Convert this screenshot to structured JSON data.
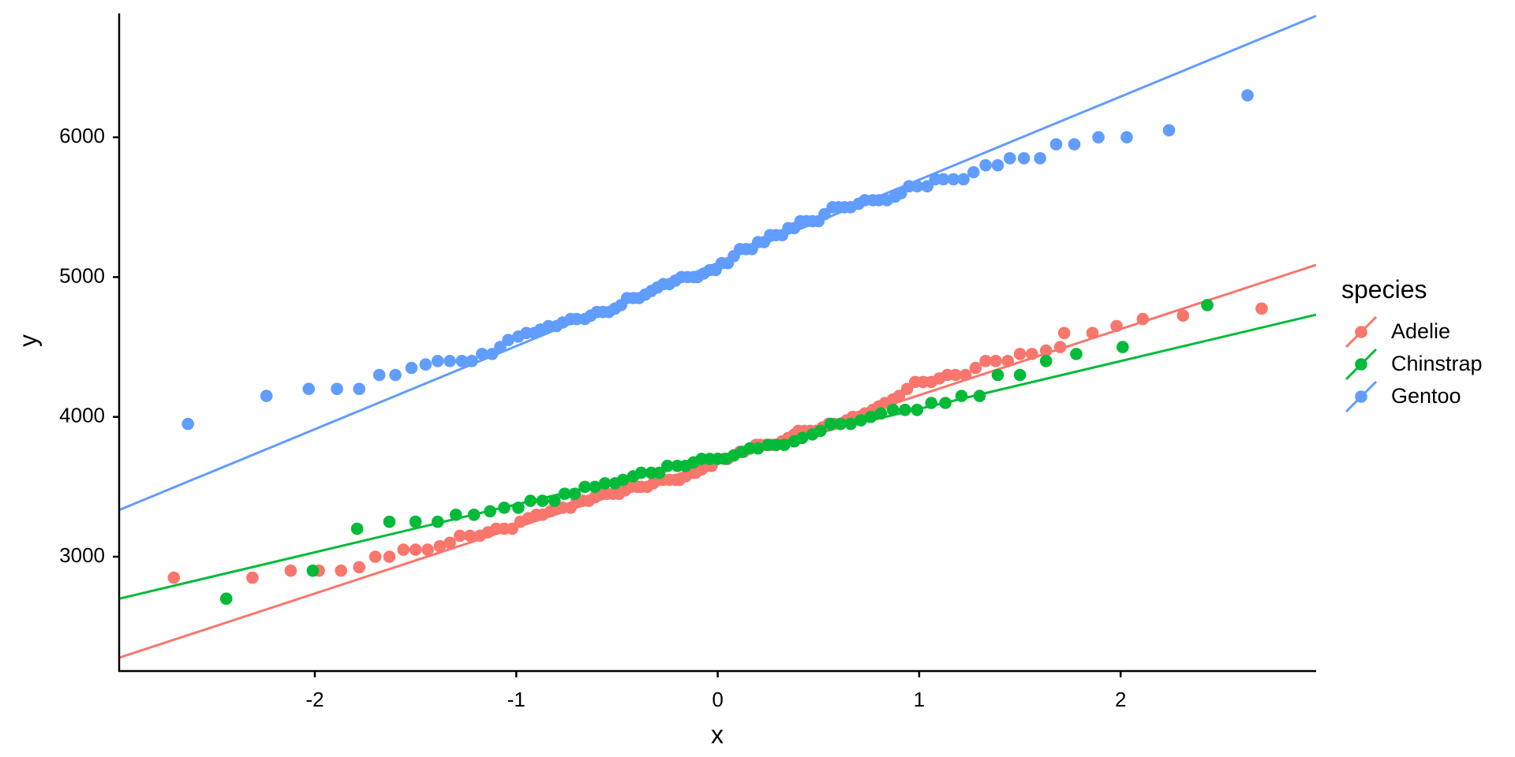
{
  "chart_data": {
    "type": "scatter",
    "subtype": "qq-plot with reference lines",
    "title": "",
    "xlabel": "x",
    "ylabel": "y",
    "xlim": [
      -2.97,
      2.97
    ],
    "ylim": [
      2200,
      6885
    ],
    "x_ticks": [
      -2,
      -1,
      0,
      1,
      2
    ],
    "x_tick_labels": [
      "-2",
      "-1",
      "0",
      "1",
      "2"
    ],
    "y_ticks": [
      3000,
      4000,
      5000,
      6000
    ],
    "y_tick_labels": [
      "3000",
      "4000",
      "5000",
      "6000"
    ],
    "grid": false,
    "legend": {
      "title": "species",
      "position": "right",
      "entries": [
        "Adelie",
        "Chinstrap",
        "Gentoo"
      ]
    },
    "series": [
      {
        "name": "Adelie",
        "color": "#F8766D",
        "n": 151,
        "reference_line": {
          "x": [
            -2.97,
            2.97
          ],
          "y": [
            2278,
            5087
          ]
        },
        "levels": [
          [
            -2.7,
            2850
          ],
          [
            -2.31,
            2850
          ],
          [
            -2.12,
            2900
          ],
          [
            -1.98,
            2900
          ],
          [
            -1.87,
            2900
          ],
          [
            -1.78,
            2925
          ],
          [
            -1.7,
            3000
          ],
          [
            -1.63,
            3000
          ],
          [
            -1.56,
            3050
          ],
          [
            -1.5,
            3050
          ],
          [
            -1.44,
            3050
          ],
          [
            -1.38,
            3075
          ],
          [
            -1.33,
            3100
          ],
          [
            -1.28,
            3150
          ],
          [
            -1.23,
            3150
          ],
          [
            -1.18,
            3150
          ],
          [
            -1.14,
            3175
          ],
          [
            -1.1,
            3200
          ],
          [
            -1.06,
            3200
          ],
          [
            -1.02,
            3200
          ],
          [
            -0.98,
            3250
          ],
          [
            -0.94,
            3275
          ],
          [
            -0.9,
            3300
          ],
          [
            -0.87,
            3300
          ],
          [
            -0.83,
            3325
          ],
          [
            -0.8,
            3350
          ],
          [
            -0.77,
            3350
          ],
          [
            -0.73,
            3350
          ],
          [
            -0.7,
            3400
          ],
          [
            -0.67,
            3400
          ],
          [
            -0.64,
            3400
          ],
          [
            -0.61,
            3425
          ],
          [
            -0.58,
            3450
          ],
          [
            -0.55,
            3450
          ],
          [
            -0.52,
            3450
          ],
          [
            -0.49,
            3450
          ],
          [
            -0.46,
            3475
          ],
          [
            -0.43,
            3500
          ],
          [
            -0.4,
            3500
          ],
          [
            -0.38,
            3500
          ],
          [
            -0.35,
            3500
          ],
          [
            -0.32,
            3525
          ],
          [
            -0.29,
            3550
          ],
          [
            -0.27,
            3550
          ],
          [
            -0.24,
            3550
          ],
          [
            -0.21,
            3550
          ],
          [
            -0.19,
            3550
          ],
          [
            -0.16,
            3575
          ],
          [
            -0.13,
            3600
          ],
          [
            -0.11,
            3600
          ],
          [
            -0.08,
            3625
          ],
          [
            -0.05,
            3650
          ],
          [
            -0.03,
            3650
          ],
          [
            0.0,
            3700
          ],
          [
            0.03,
            3700
          ],
          [
            0.05,
            3700
          ],
          [
            0.08,
            3725
          ],
          [
            0.11,
            3750
          ],
          [
            0.13,
            3750
          ],
          [
            0.16,
            3775
          ],
          [
            0.19,
            3800
          ],
          [
            0.21,
            3800
          ],
          [
            0.24,
            3800
          ],
          [
            0.27,
            3800
          ],
          [
            0.29,
            3800
          ],
          [
            0.32,
            3825
          ],
          [
            0.35,
            3850
          ],
          [
            0.38,
            3875
          ],
          [
            0.4,
            3900
          ],
          [
            0.43,
            3900
          ],
          [
            0.46,
            3900
          ],
          [
            0.49,
            3900
          ],
          [
            0.52,
            3925
          ],
          [
            0.55,
            3950
          ],
          [
            0.58,
            3950
          ],
          [
            0.61,
            3950
          ],
          [
            0.64,
            3975
          ],
          [
            0.67,
            4000
          ],
          [
            0.7,
            4000
          ],
          [
            0.73,
            4025
          ],
          [
            0.77,
            4050
          ],
          [
            0.8,
            4075
          ],
          [
            0.83,
            4100
          ],
          [
            0.87,
            4125
          ],
          [
            0.9,
            4150
          ],
          [
            0.94,
            4200
          ],
          [
            0.98,
            4250
          ],
          [
            1.02,
            4250
          ],
          [
            1.06,
            4250
          ],
          [
            1.1,
            4275
          ],
          [
            1.14,
            4300
          ],
          [
            1.18,
            4300
          ],
          [
            1.23,
            4300
          ],
          [
            1.28,
            4350
          ],
          [
            1.33,
            4400
          ],
          [
            1.38,
            4400
          ],
          [
            1.44,
            4400
          ],
          [
            1.5,
            4450
          ],
          [
            1.56,
            4450
          ],
          [
            1.63,
            4475
          ],
          [
            1.7,
            4500
          ],
          [
            1.72,
            4600
          ],
          [
            1.86,
            4600
          ],
          [
            1.98,
            4650
          ],
          [
            2.11,
            4700
          ],
          [
            2.31,
            4725
          ],
          [
            2.7,
            4775
          ]
        ]
      },
      {
        "name": "Chinstrap",
        "color": "#00BA38",
        "n": 68,
        "reference_line": {
          "x": [
            -2.97,
            2.97
          ],
          "y": [
            2700,
            4731
          ]
        },
        "levels": [
          [
            -2.44,
            2700
          ],
          [
            -2.01,
            2900
          ],
          [
            -1.79,
            3200
          ],
          [
            -1.63,
            3250
          ],
          [
            -1.5,
            3250
          ],
          [
            -1.39,
            3250
          ],
          [
            -1.3,
            3300
          ],
          [
            -1.21,
            3300
          ],
          [
            -1.13,
            3325
          ],
          [
            -1.06,
            3350
          ],
          [
            -0.99,
            3350
          ],
          [
            -0.93,
            3400
          ],
          [
            -0.87,
            3400
          ],
          [
            -0.81,
            3400
          ],
          [
            -0.76,
            3450
          ],
          [
            -0.71,
            3450
          ],
          [
            -0.66,
            3500
          ],
          [
            -0.61,
            3500
          ],
          [
            -0.56,
            3525
          ],
          [
            -0.51,
            3525
          ],
          [
            -0.47,
            3550
          ],
          [
            -0.42,
            3575
          ],
          [
            -0.38,
            3600
          ],
          [
            -0.33,
            3600
          ],
          [
            -0.29,
            3600
          ],
          [
            -0.25,
            3650
          ],
          [
            -0.2,
            3650
          ],
          [
            -0.16,
            3650
          ],
          [
            -0.12,
            3675
          ],
          [
            -0.08,
            3700
          ],
          [
            -0.04,
            3700
          ],
          [
            0.0,
            3700
          ],
          [
            0.04,
            3700
          ],
          [
            0.08,
            3725
          ],
          [
            0.12,
            3750
          ],
          [
            0.16,
            3775
          ],
          [
            0.2,
            3775
          ],
          [
            0.25,
            3800
          ],
          [
            0.29,
            3800
          ],
          [
            0.33,
            3800
          ],
          [
            0.38,
            3825
          ],
          [
            0.42,
            3850
          ],
          [
            0.47,
            3875
          ],
          [
            0.51,
            3900
          ],
          [
            0.56,
            3950
          ],
          [
            0.61,
            3950
          ],
          [
            0.66,
            3950
          ],
          [
            0.71,
            3975
          ],
          [
            0.76,
            4000
          ],
          [
            0.81,
            4025
          ],
          [
            0.87,
            4050
          ],
          [
            0.93,
            4050
          ],
          [
            0.99,
            4050
          ],
          [
            1.06,
            4100
          ],
          [
            1.13,
            4100
          ],
          [
            1.21,
            4150
          ],
          [
            1.3,
            4150
          ],
          [
            1.39,
            4300
          ],
          [
            1.5,
            4300
          ],
          [
            1.63,
            4400
          ],
          [
            1.78,
            4450
          ],
          [
            2.01,
            4500
          ],
          [
            2.43,
            4800
          ]
        ]
      },
      {
        "name": "Gentoo",
        "color": "#619CFF",
        "n": 123,
        "reference_line": {
          "x": [
            -2.97,
            2.97
          ],
          "y": [
            3335,
            6868
          ]
        },
        "levels": [
          [
            -2.63,
            3950
          ],
          [
            -2.24,
            4150
          ],
          [
            -2.03,
            4200
          ],
          [
            -1.89,
            4200
          ],
          [
            -1.78,
            4200
          ],
          [
            -1.68,
            4300
          ],
          [
            -1.6,
            4300
          ],
          [
            -1.52,
            4350
          ],
          [
            -1.45,
            4375
          ],
          [
            -1.39,
            4400
          ],
          [
            -1.33,
            4400
          ],
          [
            -1.27,
            4400
          ],
          [
            -1.22,
            4400
          ],
          [
            -1.17,
            4450
          ],
          [
            -1.12,
            4450
          ],
          [
            -1.08,
            4500
          ],
          [
            -1.04,
            4550
          ],
          [
            -0.99,
            4575
          ],
          [
            -0.95,
            4600
          ],
          [
            -0.91,
            4600
          ],
          [
            -0.88,
            4625
          ],
          [
            -0.84,
            4650
          ],
          [
            -0.8,
            4650
          ],
          [
            -0.77,
            4675
          ],
          [
            -0.73,
            4700
          ],
          [
            -0.7,
            4700
          ],
          [
            -0.66,
            4700
          ],
          [
            -0.63,
            4725
          ],
          [
            -0.6,
            4750
          ],
          [
            -0.57,
            4750
          ],
          [
            -0.54,
            4750
          ],
          [
            -0.51,
            4775
          ],
          [
            -0.48,
            4800
          ],
          [
            -0.45,
            4850
          ],
          [
            -0.42,
            4850
          ],
          [
            -0.39,
            4850
          ],
          [
            -0.36,
            4875
          ],
          [
            -0.33,
            4900
          ],
          [
            -0.3,
            4925
          ],
          [
            -0.27,
            4950
          ],
          [
            -0.24,
            4950
          ],
          [
            -0.21,
            4975
          ],
          [
            -0.18,
            5000
          ],
          [
            -0.15,
            5000
          ],
          [
            -0.12,
            5000
          ],
          [
            -0.1,
            5000
          ],
          [
            -0.07,
            5025
          ],
          [
            -0.04,
            5050
          ],
          [
            -0.01,
            5050
          ],
          [
            0.02,
            5100
          ],
          [
            0.05,
            5100
          ],
          [
            0.08,
            5150
          ],
          [
            0.11,
            5200
          ],
          [
            0.14,
            5200
          ],
          [
            0.17,
            5200
          ],
          [
            0.2,
            5250
          ],
          [
            0.23,
            5250
          ],
          [
            0.26,
            5300
          ],
          [
            0.29,
            5300
          ],
          [
            0.32,
            5300
          ],
          [
            0.35,
            5350
          ],
          [
            0.38,
            5350
          ],
          [
            0.41,
            5400
          ],
          [
            0.44,
            5400
          ],
          [
            0.47,
            5400
          ],
          [
            0.5,
            5400
          ],
          [
            0.53,
            5450
          ],
          [
            0.57,
            5500
          ],
          [
            0.6,
            5500
          ],
          [
            0.63,
            5500
          ],
          [
            0.66,
            5500
          ],
          [
            0.7,
            5525
          ],
          [
            0.73,
            5550
          ],
          [
            0.77,
            5550
          ],
          [
            0.8,
            5550
          ],
          [
            0.84,
            5550
          ],
          [
            0.88,
            5575
          ],
          [
            0.91,
            5600
          ],
          [
            0.95,
            5650
          ],
          [
            0.99,
            5650
          ],
          [
            1.04,
            5650
          ],
          [
            1.08,
            5700
          ],
          [
            1.12,
            5700
          ],
          [
            1.17,
            5700
          ],
          [
            1.22,
            5700
          ],
          [
            1.27,
            5750
          ],
          [
            1.33,
            5800
          ],
          [
            1.39,
            5800
          ],
          [
            1.45,
            5850
          ],
          [
            1.52,
            5850
          ],
          [
            1.6,
            5850
          ],
          [
            1.68,
            5950
          ],
          [
            1.77,
            5950
          ],
          [
            1.89,
            6000
          ],
          [
            2.03,
            6000
          ],
          [
            2.24,
            6050
          ],
          [
            2.63,
            6300
          ]
        ]
      }
    ]
  },
  "axes": {
    "x_title": "x",
    "y_title": "y",
    "x_tick_labels": [
      "-2",
      "-1",
      "0",
      "1",
      "2"
    ],
    "y_tick_labels": [
      "3000",
      "4000",
      "5000",
      "6000"
    ]
  },
  "legend": {
    "title": "species",
    "items": [
      {
        "label": "Adelie",
        "color": "#F8766D"
      },
      {
        "label": "Chinstrap",
        "color": "#00BA38"
      },
      {
        "label": "Gentoo",
        "color": "#619CFF"
      }
    ]
  }
}
